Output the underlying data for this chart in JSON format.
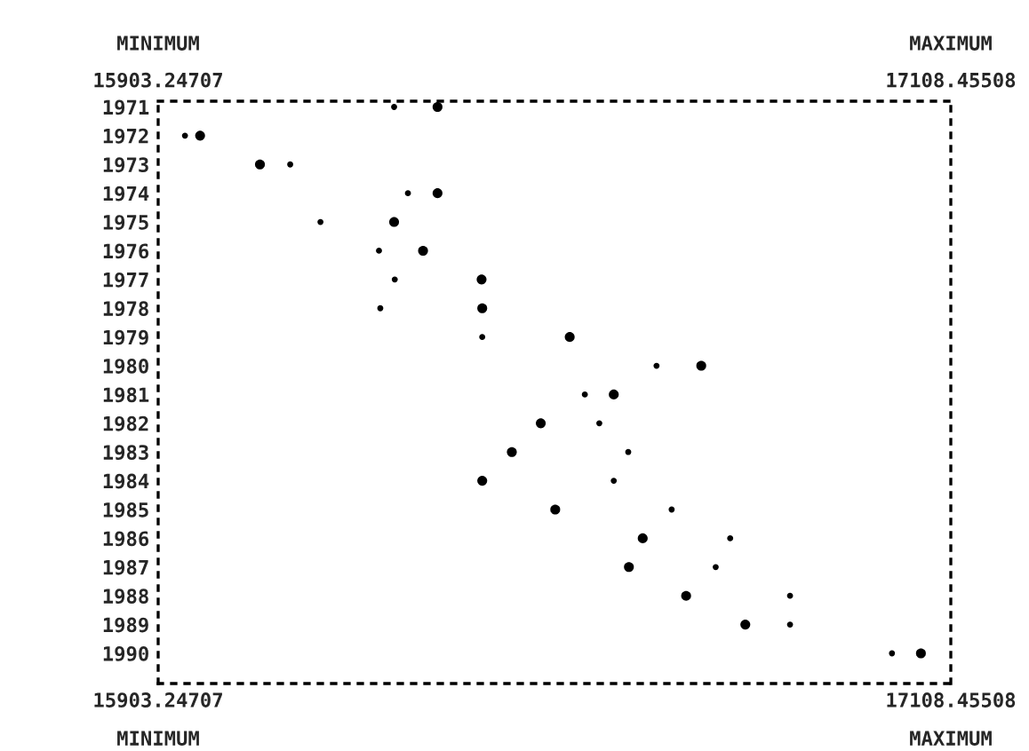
{
  "chart_data": {
    "type": "scatter",
    "orientation": "horizontal",
    "grid": false,
    "legend": false,
    "marker": "circle",
    "categories": [
      "1971",
      "1972",
      "1973",
      "1974",
      "1975",
      "1976",
      "1977",
      "1978",
      "1979",
      "1980",
      "1981",
      "1982",
      "1983",
      "1984",
      "1985",
      "1986",
      "1987",
      "1988",
      "1989",
      "1990"
    ],
    "series": [
      {
        "color": "#000000",
        "values": [
          16328,
          15967,
          16058,
          16328,
          16262,
          16306,
          16395,
          16396,
          16529,
          16729,
          16596,
          16485,
          16441,
          16396,
          16507,
          16640,
          16619,
          16706,
          16796,
          17063
        ]
      },
      {
        "color": "#000000",
        "values": [
          16262,
          15944,
          16104,
          16283,
          16150,
          16239,
          16263,
          16241,
          16396,
          16661,
          16552,
          16574,
          16618,
          16596,
          16684,
          16773,
          16751,
          16864,
          16864,
          17019
        ]
      }
    ],
    "xlim": [
      15903.24707,
      17108.45508
    ],
    "xticks": [
      15903.24707,
      17108.45508
    ],
    "x2lim": [
      15903.24707,
      17108.45508
    ],
    "x2ticks": [
      15903.24707,
      17108.45508
    ],
    "annotations": [
      "MINIMUM",
      "MAXIMUM",
      "MINIMUM",
      "MAXIMUM"
    ]
  }
}
